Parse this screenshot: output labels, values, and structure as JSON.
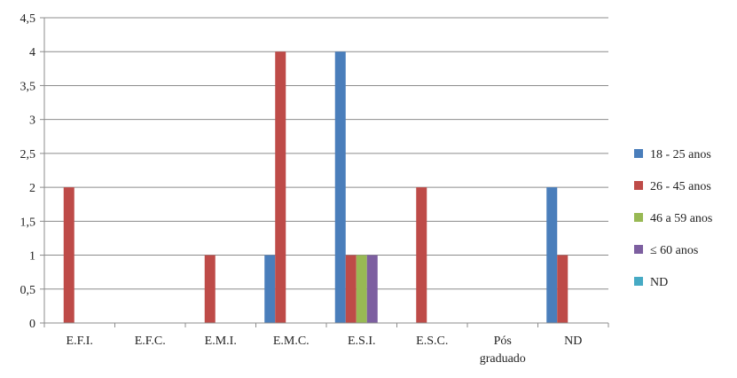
{
  "chart_data": {
    "type": "bar",
    "categories": [
      "E.F.I.",
      "E.F.C.",
      "E.M.I.",
      "E.M.C.",
      "E.S.I.",
      "E.S.C.",
      "Pós graduado",
      "ND"
    ],
    "series": [
      {
        "name": "18 - 25 anos",
        "color": "#4a7ebb",
        "values": [
          0,
          0,
          0,
          1,
          4,
          0,
          0,
          2
        ]
      },
      {
        "name": "26 - 45 anos",
        "color": "#be4b48",
        "values": [
          2,
          0,
          1,
          4,
          1,
          2,
          0,
          1
        ]
      },
      {
        "name": "46 a 59 anos",
        "color": "#98b954",
        "values": [
          0,
          0,
          0,
          0,
          1,
          0,
          0,
          0
        ]
      },
      {
        "name": "≤ 60 anos",
        "color": "#7d5fa0",
        "values": [
          0,
          0,
          0,
          0,
          1,
          0,
          0,
          0
        ]
      },
      {
        "name": "ND",
        "color": "#46aac4",
        "values": [
          0,
          0,
          0,
          0,
          0,
          0,
          0,
          0
        ]
      }
    ],
    "ylim": [
      0,
      4.5
    ],
    "yticks": [
      "0",
      "0,5",
      "1",
      "1,5",
      "2",
      "2,5",
      "3",
      "3,5",
      "4",
      "4,5"
    ],
    "grid": true,
    "legend_position": "right",
    "title": "",
    "xlabel": "",
    "ylabel": ""
  }
}
